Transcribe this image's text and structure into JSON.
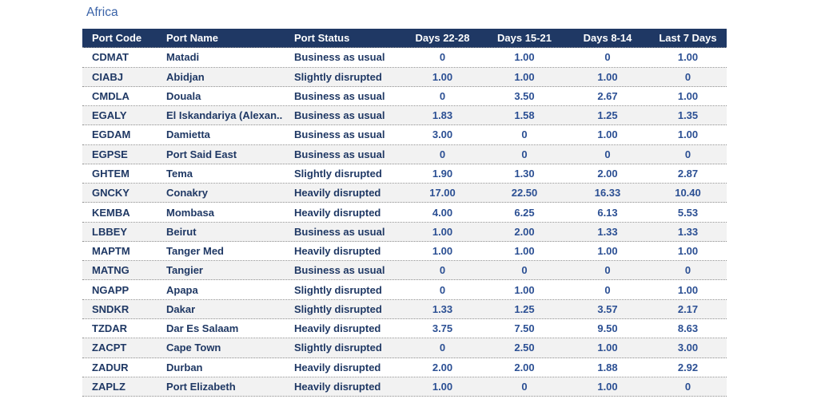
{
  "title": "Africa",
  "chart_data": {
    "type": "table",
    "title": "Africa",
    "columns": [
      "Port Code",
      "Port Name",
      "Port Status",
      "Days 22-28",
      "Days 15-21",
      "Days 8-14",
      "Last 7 Days"
    ],
    "rows": [
      [
        "CDMAT",
        "Matadi",
        "Business as usual",
        "0",
        "1.00",
        "0",
        "1.00"
      ],
      [
        "CIABJ",
        "Abidjan",
        "Slightly disrupted",
        "1.00",
        "1.00",
        "1.00",
        "0"
      ],
      [
        "CMDLA",
        "Douala",
        "Business as usual",
        "0",
        "3.50",
        "2.67",
        "1.00"
      ],
      [
        "EGALY",
        "El Iskandariya (Alexan..",
        "Business as usual",
        "1.83",
        "1.58",
        "1.25",
        "1.35"
      ],
      [
        "EGDAM",
        "Damietta",
        "Business as usual",
        "3.00",
        "0",
        "1.00",
        "1.00"
      ],
      [
        "EGPSE",
        "Port Said East",
        "Business as usual",
        "0",
        "0",
        "0",
        "0"
      ],
      [
        "GHTEM",
        "Tema",
        "Slightly disrupted",
        "1.90",
        "1.30",
        "2.00",
        "2.87"
      ],
      [
        "GNCKY",
        "Conakry",
        "Heavily disrupted",
        "17.00",
        "22.50",
        "16.33",
        "10.40"
      ],
      [
        "KEMBA",
        "Mombasa",
        "Heavily disrupted",
        "4.00",
        "6.25",
        "6.13",
        "5.53"
      ],
      [
        "LBBEY",
        "Beirut",
        "Business as usual",
        "1.00",
        "2.00",
        "1.33",
        "1.33"
      ],
      [
        "MAPTM",
        "Tanger Med",
        "Heavily disrupted",
        "1.00",
        "1.00",
        "1.00",
        "1.00"
      ],
      [
        "MATNG",
        "Tangier",
        "Business as usual",
        "0",
        "0",
        "0",
        "0"
      ],
      [
        "NGAPP",
        "Apapa",
        "Slightly disrupted",
        "0",
        "1.00",
        "0",
        "1.00"
      ],
      [
        "SNDKR",
        "Dakar",
        "Slightly disrupted",
        "1.33",
        "1.25",
        "3.57",
        "2.17"
      ],
      [
        "TZDAR",
        "Dar Es Salaam",
        "Heavily disrupted",
        "3.75",
        "7.50",
        "9.50",
        "8.63"
      ],
      [
        "ZACPT",
        "Cape Town",
        "Slightly disrupted",
        "0",
        "2.50",
        "1.00",
        "3.00"
      ],
      [
        "ZADUR",
        "Durban",
        "Heavily disrupted",
        "2.00",
        "2.00",
        "1.88",
        "2.92"
      ],
      [
        "ZAPLZ",
        "Port Elizabeth",
        "Heavily disrupted",
        "1.00",
        "0",
        "1.00",
        "0"
      ]
    ]
  },
  "colors": {
    "header_bg": "#1F3864",
    "header_text": "#FFFFFF",
    "row_text": "#1F3864",
    "value_text": "#2B4F93",
    "title_text": "#3A63A8",
    "alt_row_bg": "#F2F2F2",
    "divider": "#8F8F8F"
  }
}
